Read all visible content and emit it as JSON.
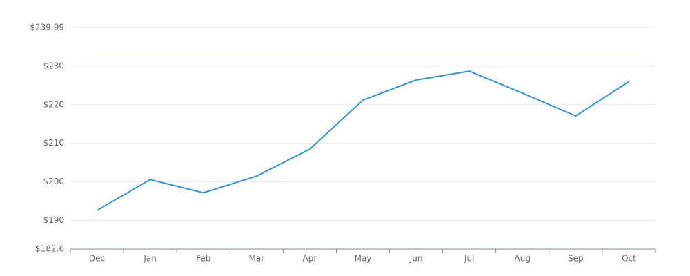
{
  "chart_data": {
    "type": "line",
    "categories": [
      "Dec",
      "Jan",
      "Feb",
      "Mar",
      "Apr",
      "May",
      "Jun",
      "Jul",
      "Aug",
      "Sep",
      "Oct"
    ],
    "series": [
      {
        "color": "#2e93e6",
        "values": [
          192.6,
          200.6,
          197.2,
          201.5,
          208.5,
          221.2,
          226.4,
          228.7,
          223.0,
          217.1,
          226.0
        ]
      }
    ],
    "ylim": [
      182.6,
      239.99
    ],
    "yticks": [
      {
        "value": 182.6,
        "label": "$182.6"
      },
      {
        "value": 190,
        "label": "$190"
      },
      {
        "value": 200,
        "label": "$200"
      },
      {
        "value": 210,
        "label": "$210"
      },
      {
        "value": 220,
        "label": "$220"
      },
      {
        "value": 230,
        "label": "$230"
      },
      {
        "value": 239.99,
        "label": "$239.99"
      }
    ],
    "grid": true
  }
}
